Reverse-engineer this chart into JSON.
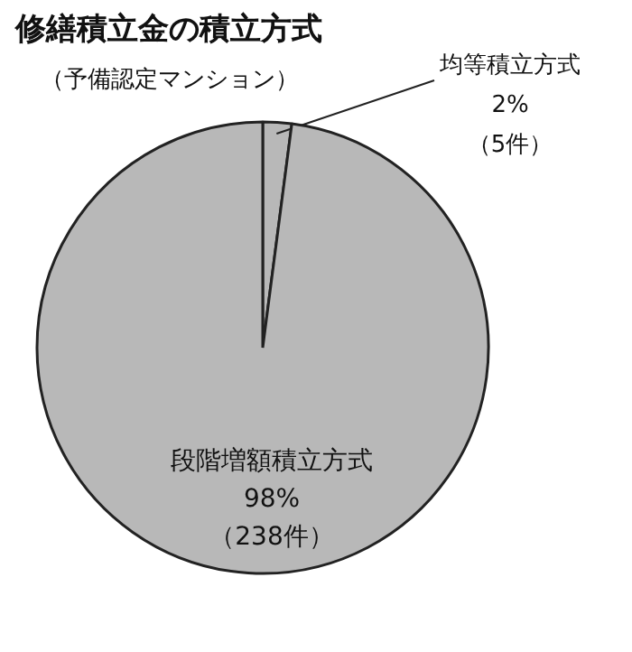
{
  "chart_data": {
    "type": "pie",
    "title": "修繕積立金の積立方式",
    "subtitle": "（予備認定マンション）",
    "categories": [
      "均等積立方式",
      "段階増額積立方式"
    ],
    "values": [
      5,
      238
    ],
    "value_labels": [
      "2%\n（5件）",
      "98%\n（238件）"
    ],
    "colors": [
      "#b8b8b8",
      "#b8b8b8"
    ]
  }
}
